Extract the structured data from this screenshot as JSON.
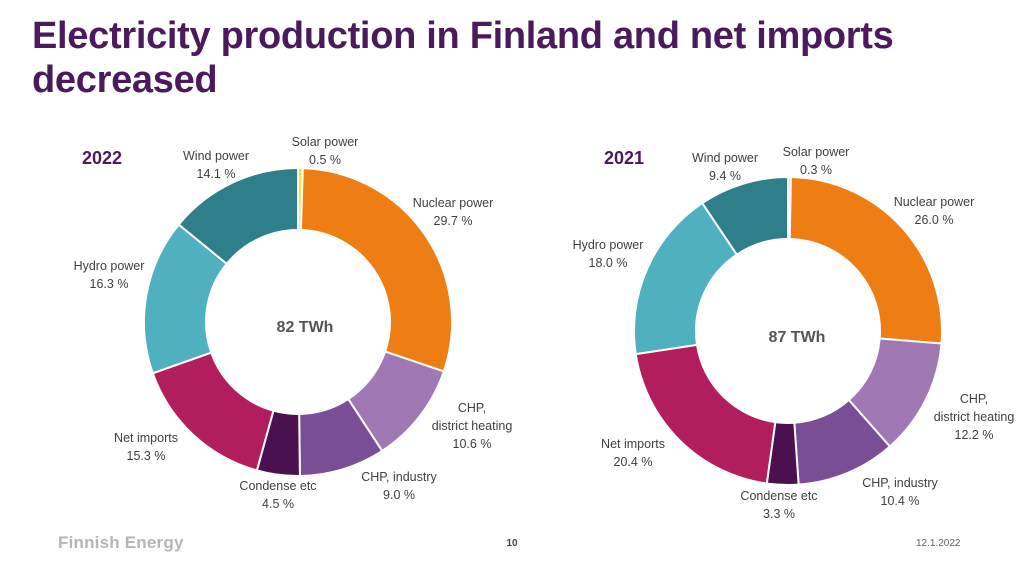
{
  "page": {
    "title": "Electricity production in Finland and net imports decreased",
    "footer_logo": "Finnish Energy",
    "page_number": "10",
    "date": "12.1.2022"
  },
  "chart_data": [
    {
      "type": "pie",
      "variant": "donut",
      "year": "2022",
      "center_label": "82 TWh",
      "slices": [
        {
          "name": "Solar power",
          "value": 0.5,
          "label": "0.5 %",
          "color": "#f5e431"
        },
        {
          "name": "Nuclear power",
          "value": 29.7,
          "label": "29.7 %",
          "color": "#ee7d14"
        },
        {
          "name": "CHP, district heating",
          "value": 10.6,
          "label": "10.6 %",
          "color": "#a078b4"
        },
        {
          "name": "CHP, industry",
          "value": 9.0,
          "label": "9.0 %",
          "color": "#7a4e94"
        },
        {
          "name": "Condense etc",
          "value": 4.5,
          "label": "4.5 %",
          "color": "#4a1050"
        },
        {
          "name": "Net imports",
          "value": 15.3,
          "label": "15.3 %",
          "color": "#b21d5c"
        },
        {
          "name": "Hydro power",
          "value": 16.3,
          "label": "16.3 %",
          "color": "#4fb0bf"
        },
        {
          "name": "Wind power",
          "value": 14.1,
          "label": "14.1 %",
          "color": "#2f7f8b"
        }
      ]
    },
    {
      "type": "pie",
      "variant": "donut",
      "year": "2021",
      "center_label": "87 TWh",
      "slices": [
        {
          "name": "Solar power",
          "value": 0.3,
          "label": "0.3 %",
          "color": "#f5e431"
        },
        {
          "name": "Nuclear power",
          "value": 26.0,
          "label": "26.0 %",
          "color": "#ee7d14"
        },
        {
          "name": "CHP, district heating",
          "value": 12.2,
          "label": "12.2 %",
          "color": "#a078b4"
        },
        {
          "name": "CHP, industry",
          "value": 10.4,
          "label": "10.4 %",
          "color": "#7a4e94"
        },
        {
          "name": "Condense etc",
          "value": 3.3,
          "label": "3.3 %",
          "color": "#4a1050"
        },
        {
          "name": "Net imports",
          "value": 20.4,
          "label": "20.4 %",
          "color": "#b21d5c"
        },
        {
          "name": "Hydro power",
          "value": 18.0,
          "label": "18.0 %",
          "color": "#4fb0bf"
        },
        {
          "name": "Wind power",
          "value": 9.4,
          "label": "9.4 %",
          "color": "#2f7f8b"
        }
      ]
    }
  ]
}
